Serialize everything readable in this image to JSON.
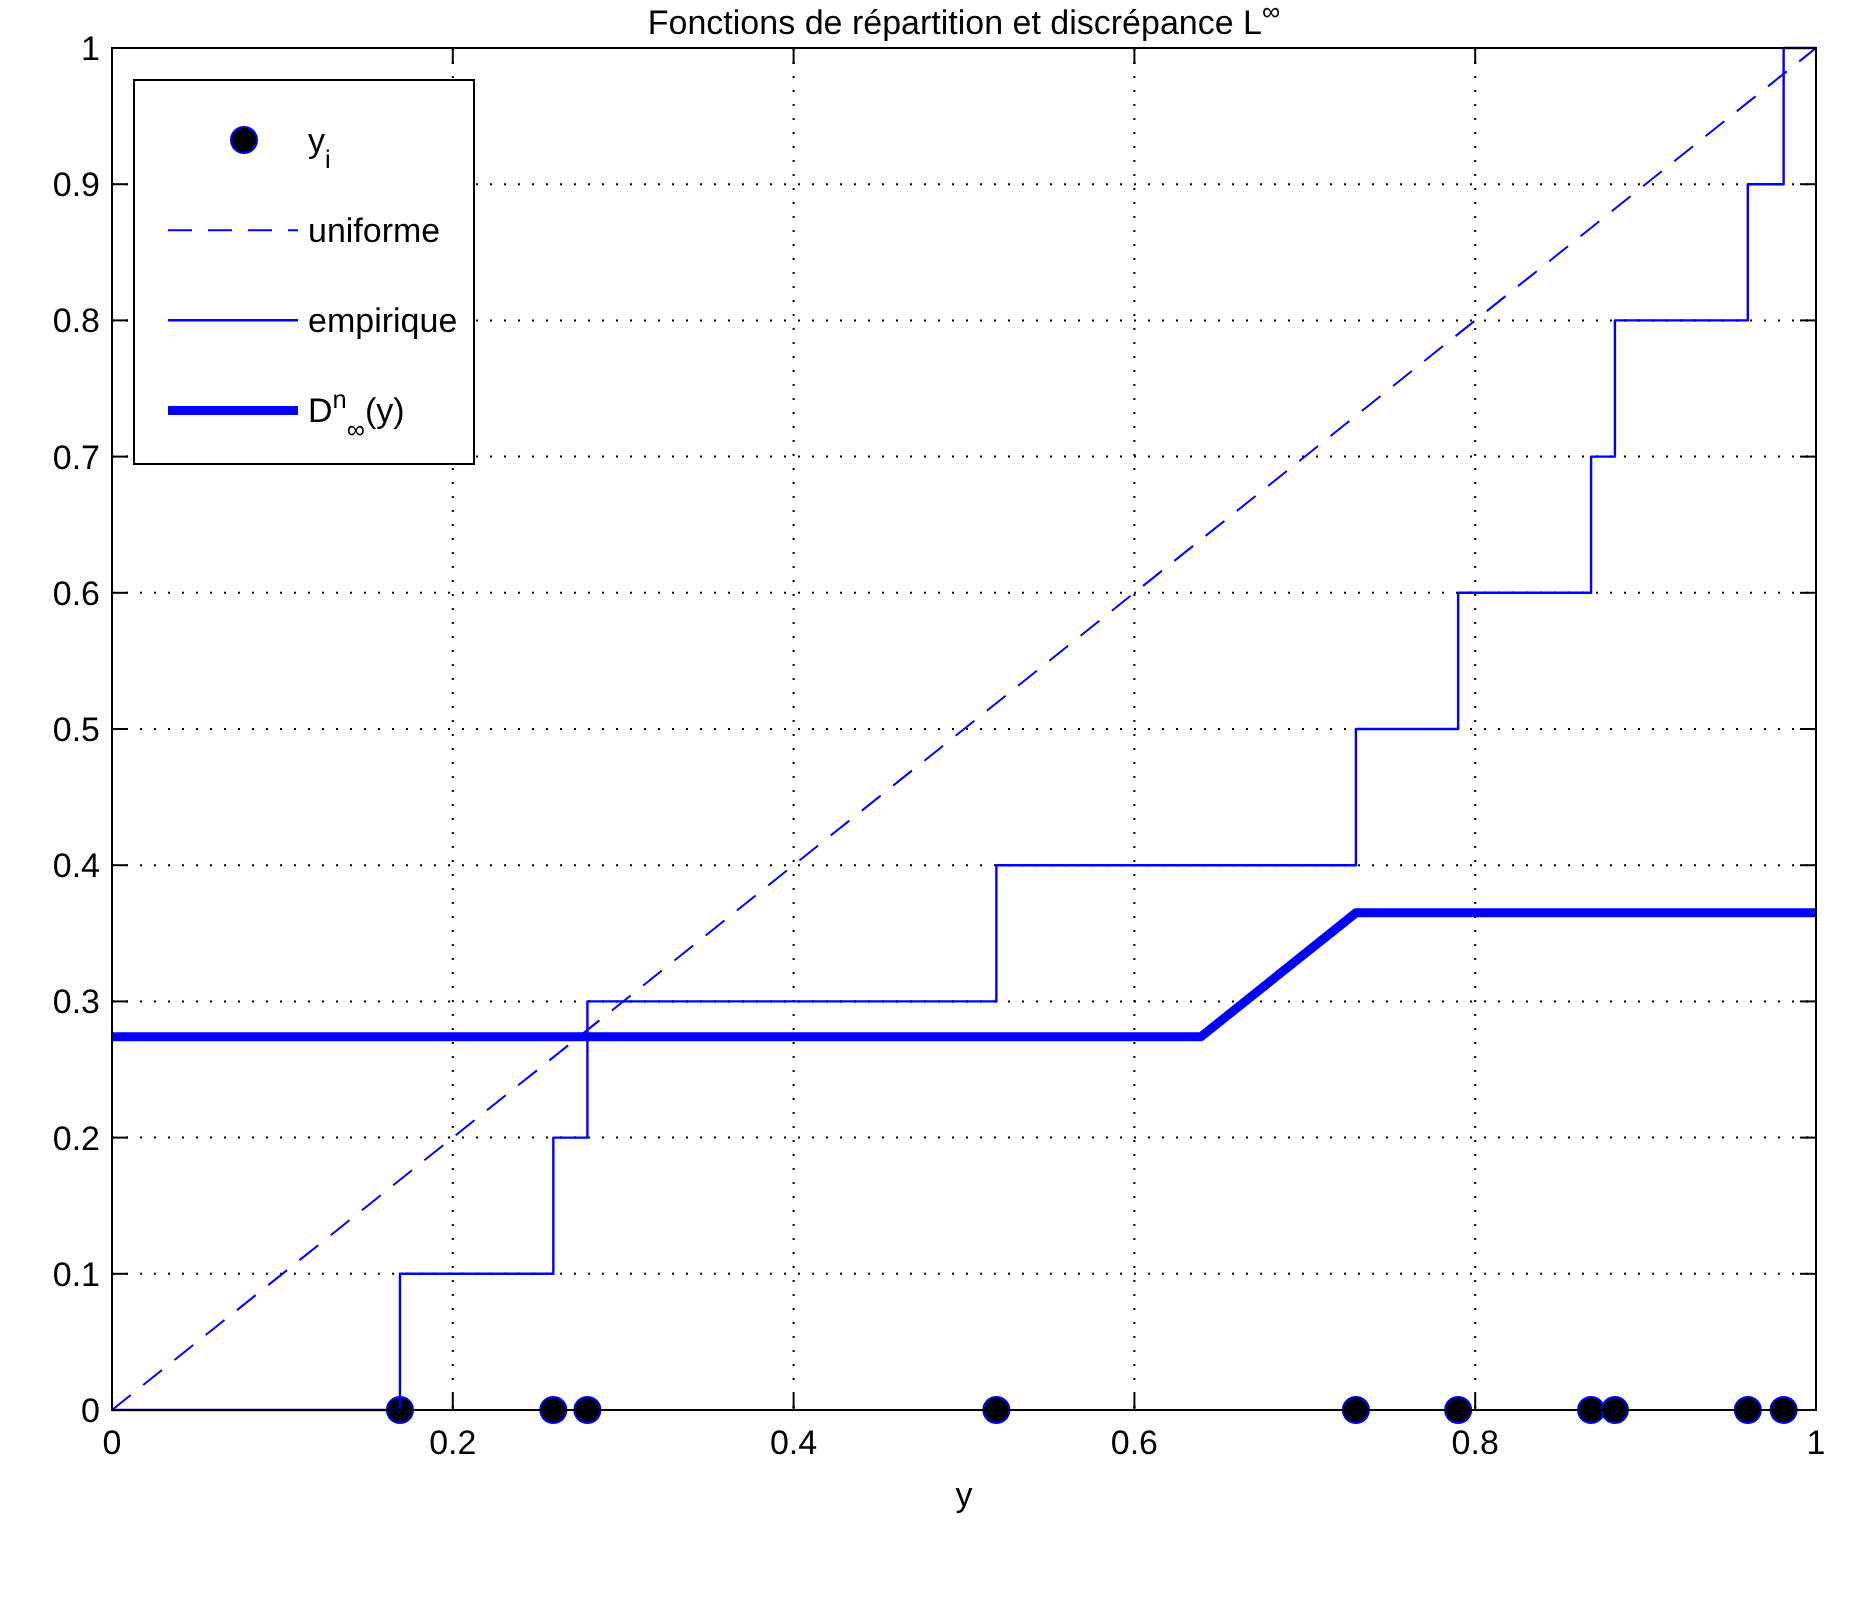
{
  "chart_data": {
    "type": "line",
    "title": "Fonctions de répartition et discrépance L$^{∞}$",
    "xlabel": "y",
    "xlim": [
      0,
      1
    ],
    "xticks": [
      0,
      0.2,
      0.4,
      0.6,
      0.8,
      1
    ],
    "ylim": [
      0,
      1
    ],
    "yticks": [
      0,
      0.1,
      0.2,
      0.3,
      0.4,
      0.5,
      0.6,
      0.7,
      0.8,
      0.9,
      1
    ],
    "grid": true,
    "legend": "top left",
    "series": [
      {
        "name": "y$_{i}$",
        "type": "scatter",
        "marker": "circle",
        "color": "#000000",
        "x": [
          0.169,
          0.259,
          0.279,
          0.519,
          0.73,
          0.79,
          0.868,
          0.882,
          0.96,
          0.981
        ],
        "values": [
          0,
          0,
          0,
          0,
          0,
          0,
          0,
          0,
          0,
          0
        ]
      },
      {
        "name": "uniforme",
        "line_style": "dashed",
        "color": "#0000ff",
        "x": [
          0,
          1
        ],
        "values": [
          0,
          1
        ]
      },
      {
        "name": "empirique",
        "type": "step",
        "line_style": "solid",
        "color": "#0000ff",
        "x": [
          0,
          0.169,
          0.259,
          0.279,
          0.519,
          0.73,
          0.79,
          0.868,
          0.882,
          0.96,
          0.981,
          1
        ],
        "values": [
          0,
          0.1,
          0.2,
          0.3,
          0.4,
          0.5,
          0.6,
          0.7,
          0.8,
          0.9,
          1,
          1
        ]
      },
      {
        "name": "D$^{n}$$_{∞}$(y)",
        "line_style": "solid",
        "color": "#0000ff",
        "x": [
          0,
          0.639,
          0.73,
          1
        ],
        "values": [
          0.274,
          0.274,
          0.365,
          0.365
        ]
      }
    ]
  }
}
